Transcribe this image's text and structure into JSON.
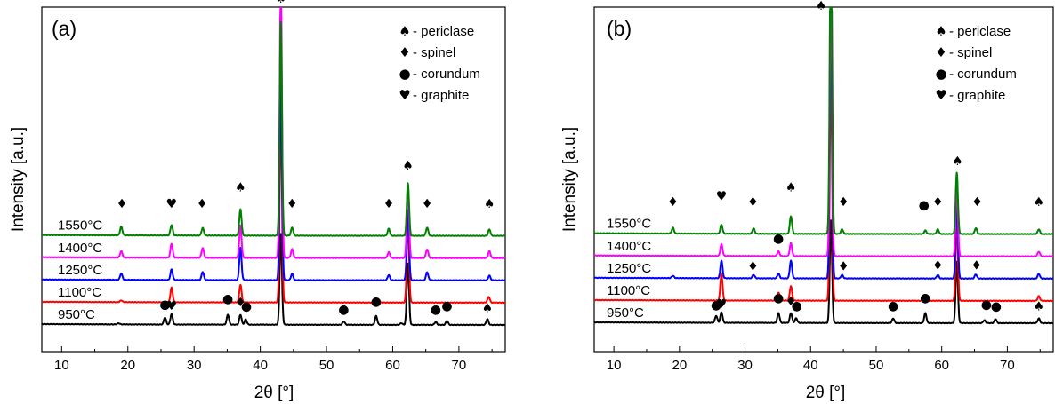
{
  "chart_data": [
    {
      "type": "line",
      "panel_label": "(a)",
      "xlabel": "2θ [°]",
      "ylabel": "Intensity [a.u.]",
      "xlim": [
        7,
        77
      ],
      "xticks": [
        10,
        20,
        30,
        40,
        50,
        60,
        70
      ],
      "xtick_labels": [
        "10",
        "20",
        "30",
        "40",
        "50",
        "60",
        "70"
      ],
      "top_peak_value": 5.2,
      "series": [
        {
          "name": "950°C",
          "color": "#000000",
          "offset": 0,
          "peaks": [
            [
              18.6,
              0.02
            ],
            [
              25.6,
              0.12
            ],
            [
              26.6,
              0.18
            ],
            [
              35.1,
              0.17
            ],
            [
              37.0,
              0.17
            ],
            [
              37.8,
              0.09
            ],
            [
              43.1,
              1.55
            ],
            [
              52.6,
              0.06
            ],
            [
              57.5,
              0.15
            ],
            [
              61.3,
              0.03
            ],
            [
              62.3,
              1.05
            ],
            [
              66.5,
              0.05
            ],
            [
              68.2,
              0.07
            ],
            [
              74.3,
              0.1
            ]
          ]
        },
        {
          "name": "1100°C",
          "color": "#ff0000",
          "offset": 0.38,
          "peaks": [
            [
              19.0,
              0.03
            ],
            [
              26.6,
              0.25
            ],
            [
              35.1,
              0.08
            ],
            [
              37.0,
              0.3
            ],
            [
              43.1,
              3.2
            ],
            [
              57.5,
              0.05
            ],
            [
              62.3,
              1.4
            ],
            [
              74.5,
              0.1
            ]
          ]
        },
        {
          "name": "1250°C",
          "color": "#0000ff",
          "offset": 0.76,
          "peaks": [
            [
              19.0,
              0.11
            ],
            [
              26.6,
              0.18
            ],
            [
              31.3,
              0.14
            ],
            [
              37.0,
              0.55
            ],
            [
              43.1,
              3.5
            ],
            [
              44.8,
              0.11
            ],
            [
              59.4,
              0.09
            ],
            [
              62.3,
              1.2
            ],
            [
              65.2,
              0.14
            ],
            [
              74.6,
              0.08
            ]
          ]
        },
        {
          "name": "1400°C",
          "color": "#ff00ff",
          "offset": 1.14,
          "peaks": [
            [
              19.0,
              0.11
            ],
            [
              26.6,
              0.24
            ],
            [
              31.3,
              0.17
            ],
            [
              37.0,
              0.55
            ],
            [
              43.1,
              4.8
            ],
            [
              44.8,
              0.15
            ],
            [
              59.4,
              0.1
            ],
            [
              62.3,
              1.25
            ],
            [
              65.2,
              0.15
            ],
            [
              74.6,
              0.12
            ]
          ]
        },
        {
          "name": "1550°C",
          "color": "#008000",
          "offset": 1.52,
          "peaks": [
            [
              19.0,
              0.15
            ],
            [
              26.6,
              0.18
            ],
            [
              31.3,
              0.13
            ],
            [
              37.0,
              0.45
            ],
            [
              43.1,
              3.65
            ],
            [
              44.8,
              0.14
            ],
            [
              59.4,
              0.12
            ],
            [
              62.3,
              0.9
            ],
            [
              65.2,
              0.14
            ],
            [
              74.6,
              0.11
            ]
          ]
        }
      ],
      "markers": [
        {
          "x": 19.1,
          "y": 2.0,
          "symbol": "♦"
        },
        {
          "x": 26.6,
          "y": 2.0,
          "symbol": "♥"
        },
        {
          "x": 31.2,
          "y": 2.0,
          "symbol": "♦"
        },
        {
          "x": 37.0,
          "y": 2.28,
          "symbol": "♠"
        },
        {
          "x": 43.1,
          "y": 5.5,
          "symbol": "♠"
        },
        {
          "x": 44.8,
          "y": 2.0,
          "symbol": "♦"
        },
        {
          "x": 59.4,
          "y": 2.0,
          "symbol": "♦"
        },
        {
          "x": 62.3,
          "y": 2.65,
          "symbol": "♠"
        },
        {
          "x": 65.2,
          "y": 2.0,
          "symbol": "♦"
        },
        {
          "x": 74.6,
          "y": 2.0,
          "symbol": "♠"
        },
        {
          "x": 25.6,
          "y": 0.28,
          "symbol": "●"
        },
        {
          "x": 26.6,
          "y": 0.26,
          "symbol": "♥"
        },
        {
          "x": 35.1,
          "y": 0.38,
          "symbol": "●"
        },
        {
          "x": 37.0,
          "y": 0.32,
          "symbol": "♦"
        },
        {
          "x": 37.9,
          "y": 0.25,
          "symbol": "●"
        },
        {
          "x": 52.6,
          "y": 0.2,
          "symbol": "●"
        },
        {
          "x": 57.5,
          "y": 0.33,
          "symbol": "●"
        },
        {
          "x": 66.5,
          "y": 0.2,
          "symbol": "●"
        },
        {
          "x": 68.2,
          "y": 0.26,
          "symbol": "●"
        },
        {
          "x": 74.3,
          "y": 0.22,
          "symbol": "♠"
        }
      ],
      "legend": [
        {
          "symbol": "♠",
          "label": "- periclase"
        },
        {
          "symbol": "♦",
          "label": "- spinel"
        },
        {
          "symbol": "●",
          "label": "- corundum"
        },
        {
          "symbol": "♥",
          "label": "- graphite"
        }
      ]
    },
    {
      "type": "line",
      "panel_label": "(b)",
      "xlabel": "2θ [°]",
      "ylabel": "Intensity [a.u.]",
      "xlim": [
        7,
        77
      ],
      "xticks": [
        10,
        20,
        30,
        40,
        50,
        60,
        70
      ],
      "xtick_labels": [
        "10",
        "20",
        "30",
        "40",
        "50",
        "60",
        "70"
      ],
      "top_peak_value": 5.2,
      "series": [
        {
          "name": "950°C",
          "color": "#000000",
          "offset": 0,
          "peaks": [
            [
              25.6,
              0.12
            ],
            [
              26.4,
              0.18
            ],
            [
              35.1,
              0.17
            ],
            [
              37.0,
              0.17
            ],
            [
              37.8,
              0.08
            ],
            [
              43.1,
              1.75
            ],
            [
              52.6,
              0.08
            ],
            [
              57.5,
              0.17
            ],
            [
              62.3,
              1.05
            ],
            [
              66.5,
              0.05
            ],
            [
              68.2,
              0.07
            ],
            [
              74.8,
              0.08
            ]
          ]
        },
        {
          "name": "1100°C",
          "color": "#ff0000",
          "offset": 0.38,
          "peaks": [
            [
              26.4,
              0.45
            ],
            [
              35.1,
              0.14
            ],
            [
              37.0,
              0.25
            ],
            [
              43.1,
              4.0
            ],
            [
              57.5,
              0.05
            ],
            [
              62.3,
              1.3
            ],
            [
              74.8,
              0.08
            ]
          ]
        },
        {
          "name": "1250°C",
          "color": "#0000ff",
          "offset": 0.76,
          "peaks": [
            [
              19.0,
              0.04
            ],
            [
              26.4,
              0.3
            ],
            [
              31.3,
              0.06
            ],
            [
              35.1,
              0.08
            ],
            [
              37.0,
              0.3
            ],
            [
              43.1,
              4.5
            ],
            [
              44.8,
              0.06
            ],
            [
              59.4,
              0.06
            ],
            [
              62.3,
              1.3
            ],
            [
              65.2,
              0.07
            ],
            [
              74.8,
              0.08
            ]
          ]
        },
        {
          "name": "1400°C",
          "color": "#ff00ff",
          "offset": 1.14,
          "peaks": [
            [
              26.4,
              0.2
            ],
            [
              35.1,
              0.08
            ],
            [
              37.0,
              0.22
            ],
            [
              43.1,
              4.8
            ],
            [
              62.3,
              1.2
            ],
            [
              74.8,
              0.08
            ]
          ]
        },
        {
          "name": "1550°C",
          "color": "#008000",
          "offset": 1.52,
          "peaks": [
            [
              19.0,
              0.1
            ],
            [
              26.4,
              0.15
            ],
            [
              31.3,
              0.09
            ],
            [
              37.0,
              0.3
            ],
            [
              43.1,
              5.6
            ],
            [
              44.8,
              0.08
            ],
            [
              57.5,
              0.06
            ],
            [
              59.4,
              0.08
            ],
            [
              62.3,
              1.05
            ],
            [
              65.2,
              0.1
            ],
            [
              74.8,
              0.08
            ]
          ]
        }
      ],
      "markers": [
        {
          "x": 19.0,
          "y": 2.0,
          "symbol": "♦"
        },
        {
          "x": 26.4,
          "y": 2.1,
          "symbol": "♥"
        },
        {
          "x": 31.2,
          "y": 2.0,
          "symbol": "♦"
        },
        {
          "x": 37.0,
          "y": 2.25,
          "symbol": "♠"
        },
        {
          "x": 41.6,
          "y": 5.35,
          "symbol": "♠"
        },
        {
          "x": 45.0,
          "y": 2.0,
          "symbol": "♦"
        },
        {
          "x": 57.3,
          "y": 1.95,
          "symbol": "●"
        },
        {
          "x": 59.4,
          "y": 2.0,
          "symbol": "♦"
        },
        {
          "x": 62.4,
          "y": 2.7,
          "symbol": "♠"
        },
        {
          "x": 65.4,
          "y": 2.0,
          "symbol": "♦"
        },
        {
          "x": 74.8,
          "y": 2.0,
          "symbol": "♠"
        },
        {
          "x": 35.1,
          "y": 1.38,
          "symbol": "●"
        },
        {
          "x": 31.2,
          "y": 0.9,
          "symbol": "♦"
        },
        {
          "x": 45.0,
          "y": 0.9,
          "symbol": "♦"
        },
        {
          "x": 59.4,
          "y": 0.92,
          "symbol": "♦"
        },
        {
          "x": 65.3,
          "y": 0.92,
          "symbol": "♦"
        },
        {
          "x": 25.6,
          "y": 0.24,
          "symbol": "●"
        },
        {
          "x": 26.4,
          "y": 0.26,
          "symbol": "♥"
        },
        {
          "x": 35.1,
          "y": 0.36,
          "symbol": "●"
        },
        {
          "x": 37.0,
          "y": 0.3,
          "symbol": "♦"
        },
        {
          "x": 37.9,
          "y": 0.23,
          "symbol": "●"
        },
        {
          "x": 52.6,
          "y": 0.23,
          "symbol": "●"
        },
        {
          "x": 57.5,
          "y": 0.36,
          "symbol": "●"
        },
        {
          "x": 66.8,
          "y": 0.25,
          "symbol": "●"
        },
        {
          "x": 68.3,
          "y": 0.22,
          "symbol": "●"
        },
        {
          "x": 74.8,
          "y": 0.22,
          "symbol": "♠"
        }
      ],
      "legend": [
        {
          "symbol": "♠",
          "label": "- periclase"
        },
        {
          "symbol": "♦",
          "label": "- spinel"
        },
        {
          "symbol": "●",
          "label": "- corundum"
        },
        {
          "symbol": "♥",
          "label": "- graphite"
        }
      ]
    }
  ]
}
